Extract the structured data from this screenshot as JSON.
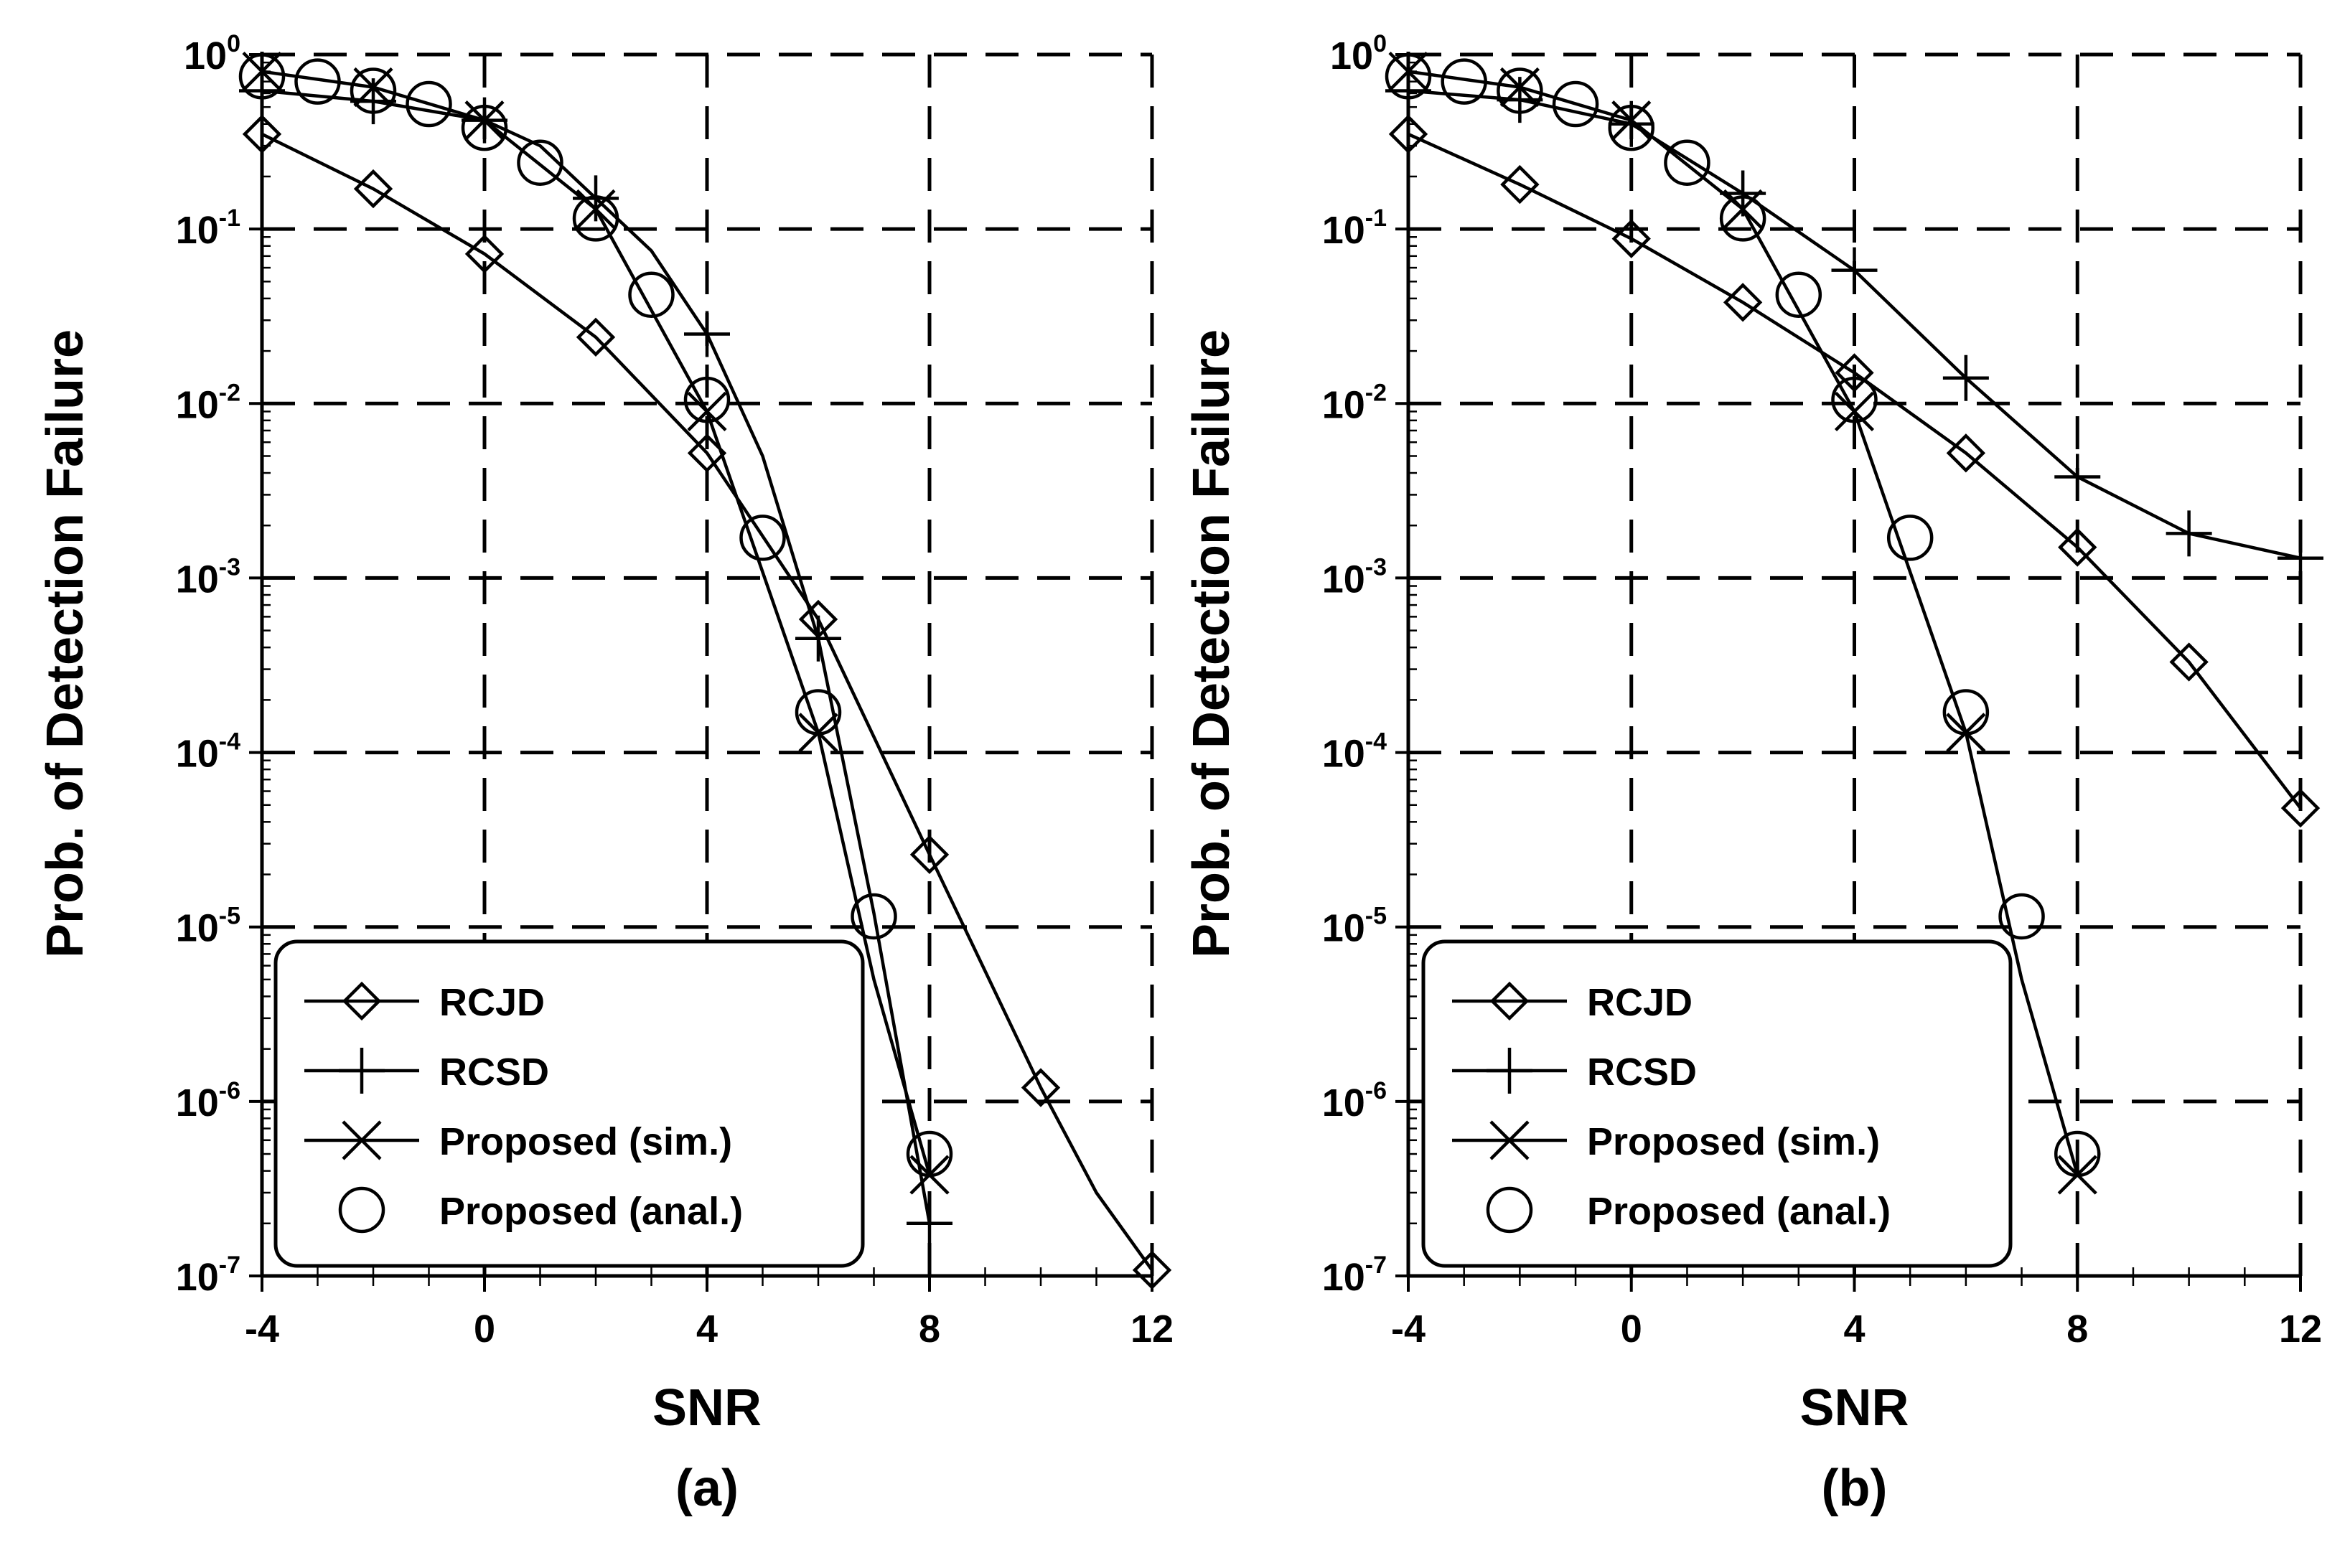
{
  "chart_data": [
    {
      "type": "line",
      "panel_label": "(a)",
      "xlabel": "SNR",
      "ylabel": "Prob. of Detection Failure",
      "yscale": "log",
      "xlim": [
        -4,
        12
      ],
      "ylim": [
        1e-07,
        1
      ],
      "xticks": [
        -4,
        0,
        4,
        8,
        12
      ],
      "xtick_labels": [
        "-4",
        "0",
        "4",
        "8",
        "12"
      ],
      "ytick_exponents": [
        0,
        -1,
        -2,
        -3,
        -4,
        -5,
        -6,
        -7
      ],
      "ytick_base": "10",
      "grid": true,
      "legend_position": "bottom-left",
      "series": [
        {
          "name": "RCJD",
          "marker": "diamond",
          "line_x": [
            -4,
            -2,
            0,
            2,
            4,
            6,
            8,
            10,
            11,
            12
          ],
          "line_y": [
            0.35,
            0.17,
            0.072,
            0.024,
            0.0052,
            0.00058,
            2.6e-05,
            1.2e-06,
            3e-07,
            1.08e-07
          ],
          "marker_x": [
            -4,
            -2,
            0,
            2,
            4,
            6,
            8,
            10,
            12
          ],
          "marker_y": [
            0.35,
            0.17,
            0.072,
            0.024,
            0.0052,
            0.00058,
            2.6e-05,
            1.2e-06,
            1.08e-07
          ]
        },
        {
          "name": "RCSD",
          "marker": "plus",
          "line_x": [
            -4,
            -2,
            0,
            1,
            2,
            3,
            4,
            5,
            6,
            7,
            8
          ],
          "line_y": [
            0.62,
            0.54,
            0.42,
            0.3,
            0.15,
            0.075,
            0.025,
            0.005,
            0.00045,
            1.2e-05,
            2e-07
          ],
          "marker_x": [
            -4,
            -2,
            0,
            2,
            4,
            6,
            8
          ],
          "marker_y": [
            0.62,
            0.54,
            0.42,
            0.15,
            0.025,
            0.00045,
            2e-07
          ]
        },
        {
          "name": "Proposed (sim.)",
          "marker": "x",
          "line_x": [
            -4,
            -2,
            0,
            2,
            4,
            6,
            7,
            8
          ],
          "line_y": [
            0.8,
            0.65,
            0.42,
            0.13,
            0.009,
            0.00013,
            5e-06,
            3.8e-07
          ],
          "marker_x": [
            -4,
            -2,
            0,
            2,
            4,
            6,
            8
          ],
          "marker_y": [
            0.8,
            0.65,
            0.42,
            0.13,
            0.009,
            0.00013,
            3.8e-07
          ]
        },
        {
          "name": "Proposed (anal.)",
          "marker": "circle",
          "marker_x": [
            -4,
            -3,
            -2,
            -1,
            0,
            1,
            2,
            3,
            4,
            5,
            6,
            7,
            8
          ],
          "marker_y": [
            0.75,
            0.7,
            0.62,
            0.52,
            0.38,
            0.24,
            0.115,
            0.042,
            0.0105,
            0.0017,
            0.00017,
            1.15e-05,
            5e-07
          ]
        }
      ]
    },
    {
      "type": "line",
      "panel_label": "(b)",
      "xlabel": "SNR",
      "ylabel": "Prob. of Detection Failure",
      "yscale": "log",
      "xlim": [
        -4,
        12
      ],
      "ylim": [
        1e-07,
        1
      ],
      "xticks": [
        -4,
        0,
        4,
        8,
        12
      ],
      "xtick_labels": [
        "-4",
        "0",
        "4",
        "8",
        "12"
      ],
      "ytick_exponents": [
        0,
        -1,
        -2,
        -3,
        -4,
        -5,
        -6,
        -7
      ],
      "ytick_base": "10",
      "grid": true,
      "legend_position": "bottom-left",
      "series": [
        {
          "name": "RCJD",
          "marker": "diamond",
          "line_x": [
            -4,
            -2,
            0,
            2,
            4,
            6,
            8,
            10,
            12
          ],
          "line_y": [
            0.35,
            0.18,
            0.088,
            0.038,
            0.015,
            0.0052,
            0.0015,
            0.00033,
            4.8e-05
          ],
          "marker_x": [
            -4,
            -2,
            0,
            2,
            4,
            6,
            8,
            10,
            12
          ],
          "marker_y": [
            0.35,
            0.18,
            0.088,
            0.038,
            0.015,
            0.0052,
            0.0015,
            0.00033,
            4.8e-05
          ]
        },
        {
          "name": "RCSD",
          "marker": "plus",
          "line_x": [
            -4,
            -2,
            0,
            2,
            4,
            6,
            8,
            10,
            12
          ],
          "line_y": [
            0.62,
            0.55,
            0.4,
            0.16,
            0.058,
            0.014,
            0.0038,
            0.0018,
            0.0013
          ],
          "marker_x": [
            -4,
            -2,
            0,
            2,
            4,
            6,
            8,
            10,
            12
          ],
          "marker_y": [
            0.62,
            0.55,
            0.4,
            0.16,
            0.058,
            0.014,
            0.0038,
            0.0018,
            0.0013
          ]
        },
        {
          "name": "Proposed (sim.)",
          "marker": "x",
          "line_x": [
            -4,
            -2,
            0,
            2,
            4,
            6,
            7,
            8
          ],
          "line_y": [
            0.8,
            0.65,
            0.42,
            0.13,
            0.009,
            0.00013,
            5e-06,
            3.8e-07
          ],
          "marker_x": [
            -4,
            -2,
            0,
            2,
            4,
            6,
            8
          ],
          "marker_y": [
            0.8,
            0.65,
            0.42,
            0.13,
            0.009,
            0.00013,
            3.8e-07
          ]
        },
        {
          "name": "Proposed (anal.)",
          "marker": "circle",
          "marker_x": [
            -4,
            -3,
            -2,
            -1,
            0,
            1,
            2,
            3,
            4,
            5,
            6,
            7,
            8
          ],
          "marker_y": [
            0.75,
            0.7,
            0.62,
            0.52,
            0.38,
            0.24,
            0.115,
            0.042,
            0.0105,
            0.0017,
            0.00017,
            1.15e-05,
            5e-07
          ]
        }
      ]
    }
  ]
}
